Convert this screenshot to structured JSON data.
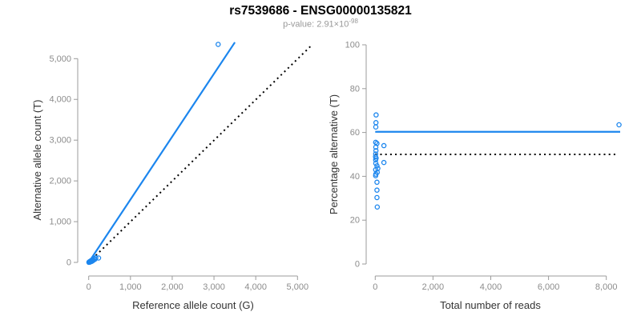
{
  "colors": {
    "accent_blue": "#1c86ee",
    "axis_gray": "#9b9b9b",
    "tick_label_gray": "#8c8c8c",
    "axis_label_dark": "#333333",
    "reference_black": "#000000"
  },
  "chart_data": {
    "type": "scatter",
    "title": "rs7539686 - ENSG00000135821",
    "subtitle_prefix": "p-value: 2.91×10",
    "subtitle_exponent": "-98",
    "panels": [
      {
        "position": "left",
        "xlabel": "Reference allele count (G)",
        "ylabel": "Alternative allele count (T)",
        "xlim": [
          0,
          5000
        ],
        "ylim": [
          0,
          5500
        ],
        "grid": false,
        "xticks": [
          {
            "value": 0,
            "label": "0"
          },
          {
            "value": 1000,
            "label": "1,000"
          },
          {
            "value": 2000,
            "label": "2,000"
          },
          {
            "value": 3000,
            "label": "3,000"
          },
          {
            "value": 4000,
            "label": "4,000"
          },
          {
            "value": 5000,
            "label": "5,000"
          }
        ],
        "yticks": [
          {
            "value": 0,
            "label": "0"
          },
          {
            "value": 1000,
            "label": "1,000"
          },
          {
            "value": 2000,
            "label": "2,000"
          },
          {
            "value": 3000,
            "label": "3,000"
          },
          {
            "value": 4000,
            "label": "4,000"
          },
          {
            "value": 5000,
            "label": "5,000"
          }
        ],
        "points": [
          [
            5,
            2
          ],
          [
            8,
            6
          ],
          [
            12,
            10
          ],
          [
            16,
            4
          ],
          [
            20,
            14
          ],
          [
            25,
            20
          ],
          [
            30,
            9
          ],
          [
            36,
            26
          ],
          [
            42,
            16
          ],
          [
            50,
            32
          ],
          [
            58,
            44
          ],
          [
            68,
            22
          ],
          [
            78,
            56
          ],
          [
            88,
            36
          ],
          [
            100,
            72
          ],
          [
            112,
            52
          ],
          [
            128,
            92
          ],
          [
            148,
            76
          ],
          [
            170,
            112
          ],
          [
            236,
            108
          ],
          [
            3100,
            5350
          ]
        ],
        "fit_line": {
          "style": "solid",
          "color": "accent_blue",
          "points": [
            [
              0,
              0
            ],
            [
              3500,
              5400
            ]
          ]
        },
        "reference_line": {
          "style": "dotted",
          "color": "reference_black",
          "points": [
            [
              0,
              0
            ],
            [
              5340,
              5330
            ]
          ]
        }
      },
      {
        "position": "right",
        "xlabel": "Total number of reads",
        "ylabel": "Percentage alternative (T)",
        "xlim": [
          0,
          8500
        ],
        "ylim": [
          0,
          100
        ],
        "grid": false,
        "xticks": [
          {
            "value": 0,
            "label": "0"
          },
          {
            "value": 2000,
            "label": "2,000"
          },
          {
            "value": 4000,
            "label": "4,000"
          },
          {
            "value": 6000,
            "label": "6,000"
          },
          {
            "value": 8000,
            "label": "8,000"
          }
        ],
        "yticks": [
          {
            "value": 0,
            "label": "0"
          },
          {
            "value": 20,
            "label": "20"
          },
          {
            "value": 40,
            "label": "40"
          },
          {
            "value": 60,
            "label": "60"
          },
          {
            "value": 80,
            "label": "80"
          },
          {
            "value": 100,
            "label": "100"
          }
        ],
        "points": [
          [
            30,
            68
          ],
          [
            25,
            64.5
          ],
          [
            20,
            62.5
          ],
          [
            15,
            55.5
          ],
          [
            60,
            55
          ],
          [
            300,
            54
          ],
          [
            20,
            53.3
          ],
          [
            25,
            51.7
          ],
          [
            15,
            50.2
          ],
          [
            10,
            49
          ],
          [
            30,
            48.3
          ],
          [
            15,
            47.5
          ],
          [
            300,
            46.3
          ],
          [
            20,
            45.9
          ],
          [
            60,
            44.8
          ],
          [
            90,
            43.6
          ],
          [
            15,
            43
          ],
          [
            70,
            41.8
          ],
          [
            20,
            41
          ],
          [
            15,
            40.3
          ],
          [
            60,
            37.3
          ],
          [
            60,
            33.7
          ],
          [
            60,
            30.3
          ],
          [
            70,
            26
          ],
          [
            8440,
            63.5
          ]
        ],
        "fit_line": {
          "style": "solid",
          "color": "accent_blue",
          "points": [
            [
              0,
              60.3
            ],
            [
              8480,
              60.3
            ]
          ]
        },
        "reference_line": {
          "style": "dotted",
          "color": "reference_black",
          "points": [
            [
              0,
              50
            ],
            [
              8370,
              50
            ]
          ]
        }
      }
    ]
  }
}
